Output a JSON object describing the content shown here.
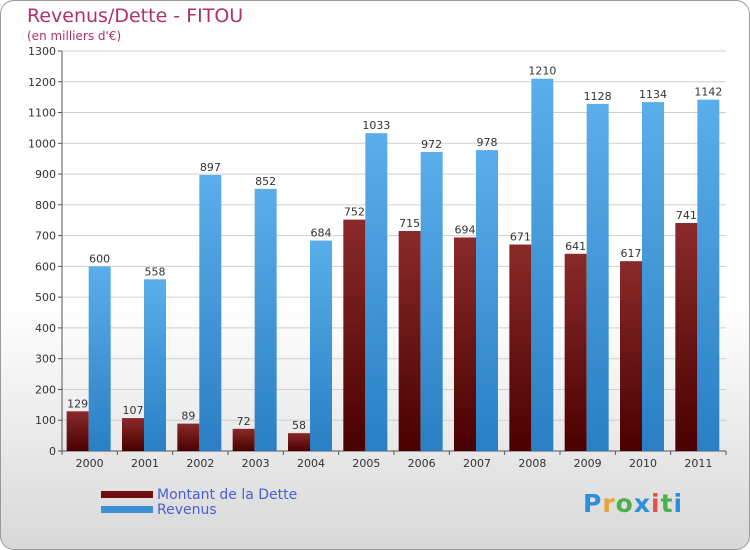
{
  "title": "Revenus/Dette - FITOU",
  "subtitle": "(en milliers d'€)",
  "chart_data": {
    "type": "bar",
    "title": "Revenus/Dette - FITOU",
    "ylabel": "(en milliers d'€)",
    "categories": [
      "2000",
      "2001",
      "2002",
      "2003",
      "2004",
      "2005",
      "2006",
      "2007",
      "2008",
      "2009",
      "2010",
      "2011"
    ],
    "series": [
      {
        "name": "Montant de la Dette",
        "values": [
          129,
          107,
          89,
          72,
          58,
          752,
          715,
          694,
          671,
          641,
          617,
          741
        ],
        "color": "#7a1a1a"
      },
      {
        "name": "Revenus",
        "values": [
          600,
          558,
          897,
          852,
          684,
          1033,
          972,
          978,
          1210,
          1128,
          1134,
          1142
        ],
        "color": "#4a9fe0"
      }
    ],
    "yticks": [
      0,
      100,
      200,
      300,
      400,
      500,
      600,
      700,
      800,
      900,
      1000,
      1100,
      1200,
      1300
    ],
    "ylim": [
      0,
      1300
    ],
    "legend_position": "bottom-left"
  },
  "legend": [
    {
      "label": "Montant de la Dette",
      "color": "#6e0e0e"
    },
    {
      "label": "Revenus",
      "color": "#3d8fd6"
    }
  ],
  "logo": {
    "letters": [
      "P",
      "r",
      "o",
      "x",
      "i",
      "t",
      "i"
    ],
    "colors": [
      "#2a8fd8",
      "#e8a23a",
      "#4cb04c",
      "#2a8fd8",
      "#e05050",
      "#4cb04c",
      "#2a8fd8"
    ]
  }
}
